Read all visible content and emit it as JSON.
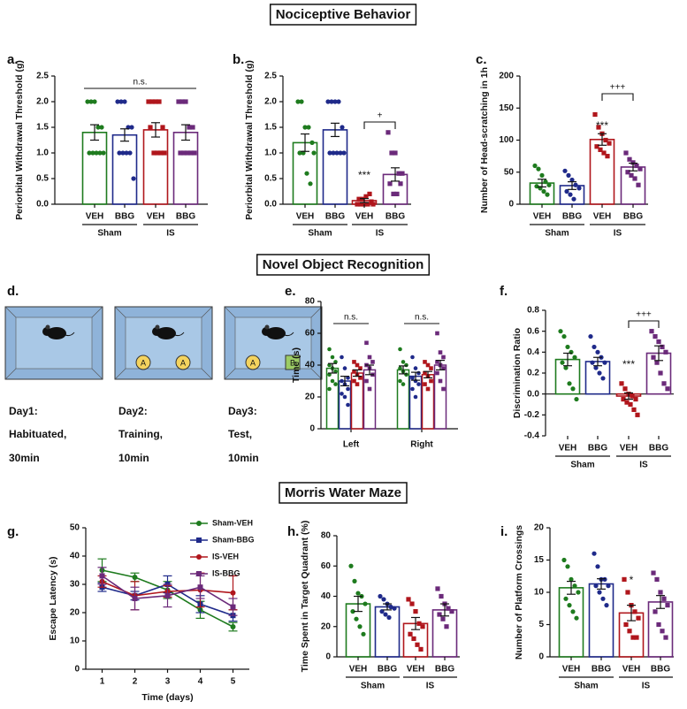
{
  "headings": [
    "Nociceptive Behavior",
    "Novel Object Recognition",
    "Morris Water Maze"
  ],
  "diagram": {
    "panel": "d.",
    "boxes": [
      {
        "objects": [],
        "caption": [
          "Day1:",
          "Habituated,",
          "30min"
        ]
      },
      {
        "objects": [
          {
            "label": "A",
            "shape": "circle"
          },
          {
            "label": "A",
            "shape": "circle"
          }
        ],
        "caption": [
          "Day2:",
          "Training,",
          "10min"
        ]
      },
      {
        "objects": [
          {
            "label": "A",
            "shape": "circle"
          },
          {
            "label": "B",
            "shape": "square"
          }
        ],
        "caption": [
          "Day3:",
          "Test,",
          "10min"
        ]
      }
    ]
  },
  "chart_data": [
    {
      "type": "bar",
      "panel": "a.",
      "ylabel": "Periorbital Withdrawal Threshold (g)",
      "categories": [
        "VEH",
        "BBG",
        "VEH",
        "BBG"
      ],
      "groups": [
        "Sham",
        "IS"
      ],
      "values": [
        1.4,
        1.35,
        1.45,
        1.4
      ],
      "errors": [
        0.15,
        0.12,
        0.14,
        0.15
      ],
      "colors": [
        "#1e7b1e",
        "#1f2a8a",
        "#b0161c",
        "#6b2a7a"
      ],
      "markers": [
        "circle",
        "circle",
        "square",
        "square"
      ],
      "points": [
        [
          2,
          2,
          2,
          1.5,
          1.5,
          1,
          1,
          1,
          1,
          1
        ],
        [
          2,
          2,
          2,
          1.5,
          1.5,
          1,
          1,
          1,
          1,
          0.5
        ],
        [
          2,
          2,
          2,
          2,
          1.5,
          1.5,
          1,
          1,
          1,
          1
        ],
        [
          2,
          2,
          2,
          1.5,
          1.5,
          1,
          1,
          1,
          1,
          1
        ]
      ],
      "ylim": [
        0,
        2.5
      ],
      "yticks": [
        {
          "value": 0,
          "label": "0.0"
        },
        0.5,
        {
          "value": 1,
          "label": "1.0"
        },
        1.5,
        {
          "value": 2,
          "label": "2.0"
        },
        2.5
      ],
      "annotations": [
        {
          "text": "n.s."
        }
      ]
    },
    {
      "type": "bar",
      "panel": "b.",
      "ylabel": "Periorbital Withdrawal Threshold (g)",
      "categories": [
        "VEH",
        "BBG",
        "VEH",
        "BBG"
      ],
      "groups": [
        "Sham",
        "IS"
      ],
      "values": [
        1.2,
        1.45,
        0.07,
        0.58
      ],
      "errors": [
        0.17,
        0.13,
        0.04,
        0.13
      ],
      "colors": [
        "#1e7b1e",
        "#1f2a8a",
        "#b0161c",
        "#6b2a7a"
      ],
      "markers": [
        "circle",
        "circle",
        "square",
        "square"
      ],
      "points": [
        [
          2,
          2,
          1.5,
          1.5,
          1.2,
          1,
          1,
          0.6,
          0.4,
          1
        ],
        [
          2,
          2,
          2,
          2,
          1.5,
          1,
          1,
          1,
          1,
          1
        ],
        [
          0,
          0,
          0,
          0,
          0.05,
          0.1,
          0.1,
          0.15,
          0.2,
          0
        ],
        [
          1.4,
          1,
          1,
          0.6,
          0.6,
          0.4,
          0.2,
          0.2,
          0.4
        ]
      ],
      "ylim": [
        0,
        2.5
      ],
      "yticks": [
        {
          "value": 0,
          "label": "0.0"
        },
        0.5,
        {
          "value": 1,
          "label": "1.0"
        },
        1.5,
        {
          "value": 2,
          "label": "2.0"
        },
        2.5
      ],
      "annotations": [
        {
          "text": "***"
        },
        {
          "text": "+"
        }
      ]
    },
    {
      "type": "bar",
      "panel": "c.",
      "ylabel": "Number of Head-scratching in 1h",
      "categories": [
        "VEH",
        "BBG",
        "VEH",
        "BBG"
      ],
      "groups": [
        "Sham",
        "IS"
      ],
      "values": [
        33,
        29,
        101,
        58
      ],
      "errors": [
        6,
        6,
        9,
        6
      ],
      "colors": [
        "#1e7b1e",
        "#1f2a8a",
        "#b0161c",
        "#6b2a7a"
      ],
      "markers": [
        "circle",
        "circle",
        "square",
        "square"
      ],
      "points": [
        [
          60,
          55,
          45,
          35,
          30,
          28,
          25,
          20,
          15
        ],
        [
          52,
          45,
          38,
          30,
          25,
          20,
          15,
          8
        ],
        [
          140,
          120,
          110,
          100,
          95,
          90,
          85,
          80,
          75
        ],
        [
          80,
          70,
          65,
          60,
          55,
          50,
          45,
          40,
          30
        ]
      ],
      "ylim": [
        0,
        200
      ],
      "yticks": [
        0,
        50,
        100,
        150,
        200
      ],
      "annotations": [
        {
          "text": "***"
        },
        {
          "text": "+++"
        }
      ]
    },
    {
      "type": "grouped_bar",
      "panel": "e.",
      "ylabel": "Time (s)",
      "categories": [
        "Left",
        "Right"
      ],
      "series": [
        {
          "color": "#1e7b1e",
          "marker": "circle",
          "values": [
            38,
            37
          ],
          "errors": [
            3,
            2.5
          ],
          "points": [
            [
              50,
              45,
              42,
              40,
              38,
              36,
              34,
              30,
              28,
              25
            ],
            [
              50,
              42,
              40,
              38,
              36,
              34,
              30,
              28
            ]
          ]
        },
        {
          "color": "#1f2a8a",
          "marker": "circle",
          "values": [
            30,
            33
          ],
          "errors": [
            3,
            2.5
          ],
          "points": [
            [
              45,
              38,
              32,
              30,
              28,
              25,
              22,
              20,
              15
            ],
            [
              45,
              38,
              35,
              32,
              30,
              28,
              25,
              20
            ]
          ]
        },
        {
          "color": "#b0161c",
          "marker": "square",
          "values": [
            35,
            34
          ],
          "errors": [
            2,
            2
          ],
          "points": [
            [
              42,
              40,
              38,
              36,
              34,
              32,
              30,
              28
            ],
            [
              42,
              40,
              38,
              35,
              33,
              30,
              28,
              25
            ]
          ]
        },
        {
          "color": "#6b2a7a",
          "marker": "square",
          "values": [
            37,
            40
          ],
          "errors": [
            3,
            3
          ],
          "points": [
            [
              54,
              45,
              42,
              40,
              38,
              34,
              30,
              25
            ],
            [
              60,
              48,
              45,
              42,
              40,
              38,
              35,
              30,
              25
            ]
          ]
        }
      ],
      "ylim": [
        0,
        80
      ],
      "yticks": [
        0,
        20,
        40,
        60,
        80
      ],
      "annotations": [
        {
          "text": "n.s."
        },
        {
          "text": "n.s."
        }
      ]
    },
    {
      "type": "bar",
      "panel": "f.",
      "ylabel": "Discrimination Ratio",
      "categories": [
        "VEH",
        "BBG",
        "VEH",
        "BBG"
      ],
      "groups": [
        "Sham",
        "IS"
      ],
      "values": [
        0.33,
        0.31,
        -0.02,
        0.39
      ],
      "errors": [
        0.06,
        0.04,
        0.03,
        0.07
      ],
      "colors": [
        "#1e7b1e",
        "#1f2a8a",
        "#b0161c",
        "#6b2a7a"
      ],
      "markers": [
        "circle",
        "circle",
        "square",
        "square"
      ],
      "points": [
        [
          0.6,
          0.55,
          0.45,
          0.4,
          0.35,
          0.3,
          0.25,
          0.1,
          0.05,
          -0.05
        ],
        [
          0.55,
          0.45,
          0.4,
          0.35,
          0.3,
          0.3,
          0.25,
          0.2,
          0.15
        ],
        [
          0.1,
          0.05,
          0,
          -0.02,
          -0.05,
          -0.05,
          -0.08,
          -0.1,
          -0.15,
          -0.2
        ],
        [
          0.6,
          0.55,
          0.5,
          0.45,
          0.4,
          0.35,
          0.3,
          0.2,
          0.1,
          0.05
        ]
      ],
      "ylim": [
        -0.4,
        0.8
      ],
      "yticks": [
        -0.4,
        -0.2,
        {
          "value": 0,
          "label": "0.0"
        },
        0.2,
        0.4,
        0.6,
        0.8
      ],
      "annotations": [
        {
          "text": "***"
        },
        {
          "text": "+++"
        }
      ]
    },
    {
      "type": "line",
      "panel": "g.",
      "xlabel": "Time (days)",
      "ylabel": "Escape Latency (s)",
      "x": [
        1,
        2,
        3,
        4,
        5
      ],
      "xlim": [
        0.5,
        5.5
      ],
      "xticks": [
        1,
        2,
        3,
        4,
        5
      ],
      "ylim": [
        0,
        50
      ],
      "yticks": [
        0,
        10,
        20,
        30,
        40,
        50
      ],
      "legend": "upper right",
      "series": [
        {
          "name": "Sham-VEH",
          "color": "#1e7b1e",
          "marker": "circle",
          "values": [
            35,
            32.5,
            28,
            21,
            15
          ],
          "errors": [
            4,
            1.5,
            3,
            3,
            1.5
          ]
        },
        {
          "name": "Sham-BBG",
          "color": "#1f2a8a",
          "marker": "square",
          "values": [
            29,
            26,
            30,
            23,
            19
          ],
          "errors": [
            1.5,
            1.5,
            3,
            3,
            2
          ]
        },
        {
          "name": "IS-VEH",
          "color": "#b0161c",
          "marker": "circle",
          "values": [
            31,
            26,
            27.5,
            28,
            27
          ],
          "errors": [
            2,
            5,
            2,
            6,
            6
          ]
        },
        {
          "name": "IS-BBG",
          "color": "#6b2a7a",
          "marker": "square",
          "values": [
            33,
            25,
            26,
            29,
            22
          ],
          "errors": [
            3,
            4,
            4,
            4,
            3
          ]
        }
      ]
    },
    {
      "type": "bar",
      "panel": "h.",
      "ylabel": "Time Spent in Target Quadrant (%)",
      "categories": [
        "VEH",
        "BBG",
        "VEH",
        "BBG"
      ],
      "groups": [
        "Sham",
        "IS"
      ],
      "values": [
        35,
        33,
        22,
        31
      ],
      "errors": [
        5,
        2,
        4,
        4
      ],
      "colors": [
        "#1e7b1e",
        "#1f2a8a",
        "#b0161c",
        "#6b2a7a"
      ],
      "markers": [
        "circle",
        "circle",
        "square",
        "square"
      ],
      "points": [
        [
          60,
          50,
          42,
          40,
          35,
          30,
          25,
          20,
          15
        ],
        [
          40,
          38,
          35,
          33,
          32,
          30,
          28,
          26
        ],
        [
          38,
          35,
          30,
          22,
          20,
          15,
          12,
          8,
          5
        ],
        [
          45,
          40,
          35,
          32,
          30,
          28,
          25,
          20
        ]
      ],
      "ylim": [
        0,
        80
      ],
      "yticks": [
        0,
        20,
        40,
        60,
        80
      ],
      "annotations": []
    },
    {
      "type": "bar",
      "panel": "i.",
      "ylabel": "Number of Platform Crossings",
      "categories": [
        "VEH",
        "BBG",
        "VEH",
        "BBG"
      ],
      "groups": [
        "Sham",
        "IS"
      ],
      "values": [
        10.7,
        11.3,
        6.8,
        8.5
      ],
      "errors": [
        1,
        0.8,
        1.2,
        1
      ],
      "colors": [
        "#1e7b1e",
        "#1f2a8a",
        "#b0161c",
        "#6b2a7a"
      ],
      "markers": [
        "circle",
        "circle",
        "square",
        "square"
      ],
      "points": [
        [
          15,
          14,
          12,
          11,
          10,
          9,
          8,
          7,
          6
        ],
        [
          16,
          14,
          12,
          12,
          11,
          11,
          10,
          9,
          8
        ],
        [
          12,
          10,
          8,
          7,
          6,
          5,
          4,
          3,
          3
        ],
        [
          13,
          12,
          10,
          9,
          8,
          7,
          5,
          4,
          3
        ]
      ],
      "ylim": [
        0,
        20
      ],
      "yticks": [
        0,
        5,
        10,
        15,
        20
      ],
      "annotations": [
        {
          "text": "*"
        }
      ]
    }
  ]
}
